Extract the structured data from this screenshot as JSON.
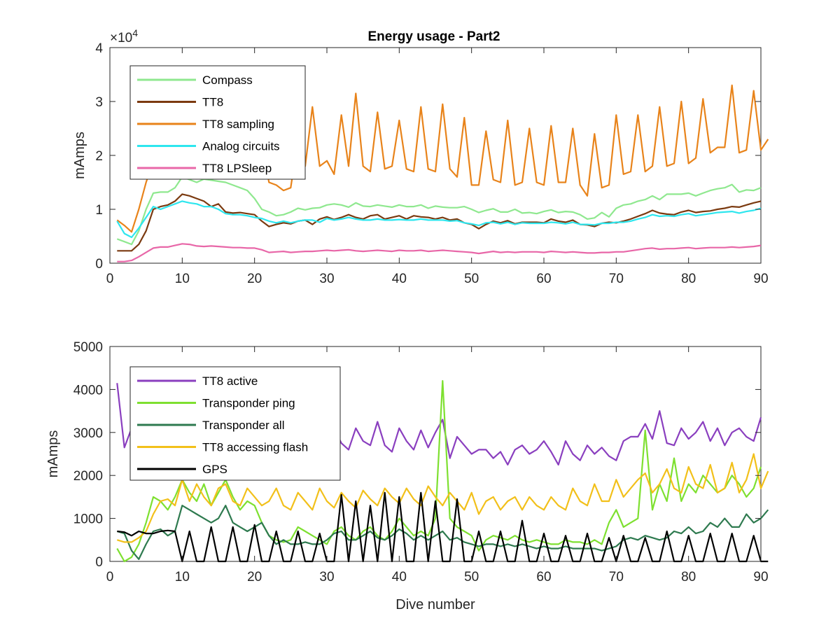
{
  "figure": {
    "title": "Energy usage - Part2"
  },
  "chart_data": [
    {
      "type": "line",
      "title": "Energy usage - Part2",
      "xlabel": "",
      "ylabel": "mAmps",
      "xlim": [
        0,
        90
      ],
      "ylim": [
        0,
        40000
      ],
      "xticks": [
        0,
        10,
        20,
        30,
        40,
        50,
        60,
        70,
        80,
        90
      ],
      "yticks": [
        0,
        10000,
        20000,
        30000,
        40000
      ],
      "ytick_labels": [
        "0",
        "1",
        "2",
        "3",
        "4"
      ],
      "exponent_label": "×10",
      "exponent_power": "4",
      "grid": false,
      "legend_position": "top-left",
      "series": [
        {
          "name": "Compass",
          "color": "#8fe88f",
          "values": [
            4500,
            4000,
            3500,
            6000,
            10000,
            13000,
            13200,
            13200,
            14000,
            16000,
            15500,
            15000,
            15600,
            15400,
            15200,
            15000,
            14500,
            14000,
            13500,
            12000,
            10000,
            9500,
            8800,
            9000,
            9500,
            10200,
            9900,
            10200,
            10300,
            10800,
            11000,
            10800,
            10400,
            11200,
            10600,
            10500,
            10800,
            10600,
            10400,
            10800,
            10500,
            10500,
            10800,
            10200,
            10600,
            10400,
            10300,
            10300,
            10500,
            10000,
            9400,
            9800,
            10100,
            9500,
            9500,
            10000,
            9300,
            9400,
            9200,
            9600,
            9900,
            9400,
            9600,
            9500,
            9000,
            8200,
            8400,
            9400,
            8600,
            10200,
            10800,
            11000,
            11500,
            11800,
            12500,
            11800,
            12800,
            12800,
            12800,
            13000,
            12500,
            13000,
            13500,
            13800,
            14000,
            14600,
            13200,
            13600,
            13500,
            14000
          ]
        },
        {
          "name": "TT8",
          "color": "#7b3a10",
          "values": [
            2300,
            2300,
            2300,
            3500,
            6000,
            10000,
            10500,
            10800,
            11500,
            12800,
            12500,
            12000,
            11500,
            10500,
            11000,
            9500,
            9300,
            9400,
            9200,
            9000,
            7800,
            6800,
            7200,
            7500,
            7300,
            7800,
            8000,
            7200,
            8200,
            8600,
            8100,
            8500,
            9000,
            8500,
            8200,
            8800,
            9000,
            8200,
            8500,
            8800,
            8200,
            8800,
            8600,
            8500,
            8200,
            8500,
            8000,
            8200,
            7500,
            7200,
            6400,
            7200,
            7800,
            7500,
            7900,
            7300,
            7600,
            7600,
            7600,
            7500,
            8200,
            7800,
            7600,
            8000,
            7200,
            7100,
            6800,
            7400,
            7600,
            7500,
            7800,
            8200,
            8700,
            9200,
            9800,
            9300,
            9100,
            9000,
            9500,
            9800,
            9400,
            9600,
            9700,
            10000,
            10200,
            10500,
            10400,
            10800,
            11200,
            11500
          ]
        },
        {
          "name": "TT8 sampling",
          "color": "#e8831a",
          "values": [
            8000,
            7000,
            5800,
            10000,
            15000,
            19000,
            21000,
            23000,
            24500,
            27000,
            26500,
            25000,
            22500,
            25000,
            23000,
            19500,
            22000,
            18000,
            21500,
            19000,
            22000,
            15000,
            14500,
            13500,
            14000,
            23000,
            18000,
            29000,
            18000,
            19000,
            16500,
            27500,
            18000,
            31500,
            18000,
            17000,
            28000,
            17500,
            18000,
            26500,
            17500,
            17000,
            29000,
            17500,
            17000,
            29500,
            17500,
            16000,
            27000,
            14500,
            14500,
            24500,
            15500,
            15000,
            26500,
            14500,
            15000,
            25000,
            15000,
            14500,
            25500,
            15000,
            15000,
            25000,
            14500,
            12500,
            24000,
            14000,
            14500,
            27500,
            16500,
            17000,
            27500,
            17000,
            18000,
            29000,
            18000,
            18500,
            30000,
            18500,
            19500,
            30500,
            20500,
            21500,
            21500,
            33000,
            20500,
            21000,
            32000,
            21000,
            23000
          ]
        },
        {
          "name": "Analog circuits",
          "color": "#2ee6ee",
          "values": [
            7800,
            5500,
            4800,
            6500,
            8500,
            10500,
            10000,
            10500,
            11000,
            11500,
            11200,
            11000,
            10500,
            10500,
            10000,
            9200,
            9000,
            9000,
            8800,
            8500,
            8300,
            7800,
            7500,
            7800,
            7500,
            7800,
            8000,
            8000,
            7600,
            8300,
            8000,
            8200,
            8500,
            8200,
            8000,
            8000,
            8200,
            8000,
            8000,
            8100,
            8000,
            8000,
            8200,
            8000,
            8000,
            8000,
            7800,
            7900,
            7500,
            7300,
            7000,
            7500,
            7600,
            7300,
            7600,
            7200,
            7500,
            7400,
            7400,
            7400,
            7600,
            7500,
            7300,
            7600,
            7200,
            7200,
            7100,
            7400,
            7400,
            7600,
            7600,
            7800,
            8200,
            8500,
            9000,
            8700,
            8800,
            8700,
            9000,
            9200,
            8800,
            9000,
            9200,
            9400,
            9500,
            9600,
            9300,
            9600,
            9800,
            10200
          ]
        },
        {
          "name": "TT8 LPSleep",
          "color": "#e867a8",
          "values": [
            300,
            300,
            500,
            1200,
            2000,
            2800,
            3000,
            3000,
            3300,
            3600,
            3500,
            3200,
            3100,
            3200,
            3100,
            3000,
            2900,
            2900,
            2800,
            2800,
            2500,
            2000,
            2100,
            2200,
            2000,
            2100,
            2200,
            2200,
            2300,
            2400,
            2300,
            2400,
            2500,
            2300,
            2200,
            2300,
            2400,
            2300,
            2200,
            2400,
            2300,
            2300,
            2400,
            2200,
            2300,
            2400,
            2300,
            2200,
            2100,
            2000,
            1800,
            2000,
            2200,
            2000,
            2100,
            2000,
            2100,
            2100,
            2100,
            2000,
            2200,
            2100,
            2000,
            2100,
            2000,
            1900,
            1900,
            2000,
            2000,
            2100,
            2100,
            2300,
            2500,
            2700,
            2800,
            2600,
            2700,
            2700,
            2800,
            2900,
            2700,
            2800,
            2900,
            2900,
            2900,
            3000,
            2900,
            3000,
            3100,
            3300
          ]
        }
      ]
    },
    {
      "type": "line",
      "title": "",
      "xlabel": "Dive number",
      "ylabel": "mAmps",
      "xlim": [
        0,
        90
      ],
      "ylim": [
        0,
        5000
      ],
      "xticks": [
        0,
        10,
        20,
        30,
        40,
        50,
        60,
        70,
        80,
        90
      ],
      "yticks": [
        0,
        1000,
        2000,
        3000,
        4000,
        5000
      ],
      "ytick_labels": [
        "0",
        "1000",
        "2000",
        "3000",
        "4000",
        "5000"
      ],
      "grid": false,
      "legend_position": "top-left",
      "series": [
        {
          "name": "TT8 active",
          "color": "#8a3fbf",
          "values": [
            4150,
            2650,
            3100,
            2700,
            2550,
            2700,
            2950,
            2700,
            2900,
            3150,
            3000,
            2900,
            3000,
            2700,
            2950,
            2800,
            3050,
            2900,
            3100,
            2800,
            2650,
            2800,
            2700,
            2550,
            2800,
            2900,
            2700,
            2950,
            2700,
            2500,
            3100,
            2750,
            2600,
            3100,
            2800,
            2700,
            3250,
            2700,
            2550,
            3100,
            2800,
            2600,
            3050,
            2650,
            3000,
            3300,
            2400,
            2900,
            2700,
            2500,
            2600,
            2600,
            2400,
            2550,
            2250,
            2600,
            2700,
            2500,
            2600,
            2800,
            2550,
            2250,
            2800,
            2500,
            2350,
            2700,
            2500,
            2650,
            2450,
            2350,
            2800,
            2900,
            2900,
            3200,
            2850,
            3500,
            2750,
            2700,
            3100,
            2850,
            3000,
            3250,
            2800,
            3100,
            2700,
            3000,
            3100,
            2900,
            2800,
            3350
          ]
        },
        {
          "name": "Transponder ping",
          "color": "#7ee030",
          "values": [
            300,
            0,
            100,
            400,
            900,
            1500,
            1400,
            1200,
            1500,
            1900,
            1600,
            1400,
            1800,
            1300,
            1600,
            1900,
            1500,
            1200,
            1400,
            1300,
            900,
            600,
            500,
            450,
            500,
            800,
            700,
            600,
            500,
            400,
            700,
            800,
            600,
            500,
            700,
            800,
            600,
            500,
            700,
            1000,
            800,
            600,
            700,
            600,
            1000,
            4200,
            1000,
            800,
            700,
            600,
            250,
            500,
            600,
            550,
            500,
            600,
            500,
            450,
            500,
            450,
            400,
            400,
            500,
            450,
            450,
            400,
            500,
            400,
            900,
            1200,
            800,
            900,
            1000,
            3050,
            1200,
            1800,
            1400,
            2400,
            1400,
            1800,
            1600,
            2000,
            1800,
            1600,
            1700,
            2000,
            1800,
            1500,
            1700,
            2200
          ]
        },
        {
          "name": "Transponder all",
          "color": "#2e7a4f",
          "values": [
            700,
            650,
            250,
            50,
            400,
            700,
            750,
            600,
            700,
            1300,
            1200,
            1100,
            1000,
            900,
            1000,
            1300,
            900,
            800,
            700,
            800,
            900,
            600,
            400,
            500,
            400,
            400,
            450,
            400,
            400,
            500,
            650,
            700,
            500,
            500,
            600,
            700,
            550,
            500,
            600,
            750,
            650,
            500,
            600,
            500,
            600,
            700,
            500,
            550,
            450,
            400,
            350,
            400,
            400,
            350,
            400,
            350,
            400,
            350,
            300,
            350,
            300,
            300,
            350,
            300,
            300,
            300,
            300,
            250,
            300,
            350,
            500,
            550,
            500,
            600,
            550,
            500,
            550,
            700,
            650,
            800,
            650,
            700,
            900,
            800,
            1000,
            800,
            800,
            1100,
            900,
            1000,
            1200
          ]
        },
        {
          "name": "TT8 accessing flash",
          "color": "#f2c01a",
          "values": [
            500,
            450,
            450,
            550,
            700,
            1100,
            1400,
            1450,
            1300,
            1900,
            1400,
            1800,
            1500,
            1300,
            1700,
            1800,
            1400,
            1300,
            1700,
            1500,
            1300,
            1400,
            1700,
            1300,
            1200,
            1600,
            1400,
            1200,
            1700,
            1400,
            1250,
            1600,
            1400,
            1250,
            1650,
            1450,
            1300,
            1700,
            1500,
            1350,
            1700,
            1450,
            1300,
            1750,
            1500,
            1300,
            1600,
            1400,
            1200,
            1600,
            1100,
            1400,
            1500,
            1200,
            1400,
            1500,
            1200,
            1500,
            1300,
            1200,
            1500,
            1300,
            1200,
            1700,
            1400,
            1300,
            1800,
            1400,
            1400,
            1900,
            1500,
            1700,
            1900,
            2050,
            1600,
            1800,
            2150,
            1700,
            1600,
            2200,
            1800,
            1700,
            2250,
            1600,
            1700,
            2300,
            1600,
            1900,
            2500,
            1700,
            2100
          ]
        },
        {
          "name": "GPS",
          "color": "#000000",
          "values": [
            700,
            680,
            600,
            700,
            650,
            650,
            700,
            720,
            700,
            0,
            700,
            0,
            0,
            800,
            0,
            0,
            800,
            0,
            0,
            850,
            0,
            0,
            700,
            0,
            0,
            700,
            0,
            0,
            650,
            0,
            0,
            1550,
            0,
            1400,
            0,
            1300,
            0,
            1600,
            0,
            1500,
            0,
            0,
            1600,
            0,
            1400,
            0,
            0,
            1450,
            0,
            0,
            700,
            0,
            0,
            700,
            0,
            0,
            950,
            0,
            0,
            650,
            0,
            0,
            600,
            0,
            0,
            650,
            0,
            0,
            550,
            0,
            600,
            0,
            0,
            550,
            0,
            0,
            700,
            0,
            0,
            600,
            0,
            0,
            650,
            0,
            0,
            650,
            0,
            0,
            600,
            0,
            0
          ]
        }
      ]
    }
  ]
}
